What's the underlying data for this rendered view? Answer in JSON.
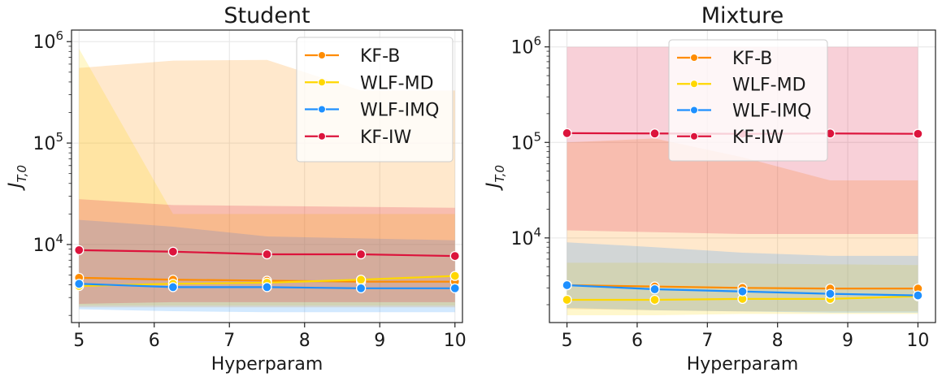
{
  "chart_data": [
    {
      "type": "line",
      "title": "Student",
      "xlabel": "Hyperparam",
      "ylabel": "J_{T,0}",
      "yscale": "log",
      "xlim": [
        4.9,
        10.1
      ],
      "ylim": [
        1700,
        1300000
      ],
      "x_ticks": [
        "5",
        "6",
        "7",
        "8",
        "9",
        "10"
      ],
      "y_ticks": [
        {
          "value": 10000,
          "base": "10",
          "exp": "4"
        },
        {
          "value": 100000,
          "base": "10",
          "exp": "5"
        },
        {
          "value": 1000000,
          "base": "10",
          "exp": "6"
        }
      ],
      "grid": true,
      "legend_position": "top-right",
      "x": [
        5,
        6.25,
        7.5,
        8.75,
        10
      ],
      "series": [
        {
          "name": "KF-B",
          "color": "#ff8c00",
          "values": [
            4700,
            4500,
            4400,
            4300,
            4300
          ],
          "band_low": [
            2400,
            2400,
            2400,
            2400,
            2400
          ],
          "band_high": [
            550000,
            650000,
            660000,
            330000,
            330000
          ]
        },
        {
          "name": "WLF-MD",
          "color": "#ffd700",
          "values": [
            3900,
            4100,
            4200,
            4500,
            4900
          ],
          "band_low": [
            2500,
            2500,
            2500,
            2500,
            2500
          ],
          "band_high": [
            850000,
            20000,
            20000,
            20000,
            20000
          ]
        },
        {
          "name": "WLF-IMQ",
          "color": "#1e90ff",
          "values": [
            4100,
            3800,
            3800,
            3700,
            3700
          ],
          "band_low": [
            2300,
            2200,
            2150,
            2150,
            2150
          ],
          "band_high": [
            17500,
            15000,
            12000,
            11500,
            11000
          ]
        },
        {
          "name": "KF-IW",
          "color": "#dc143c",
          "values": [
            8800,
            8500,
            8000,
            8000,
            7700
          ],
          "band_low": [
            2600,
            2700,
            2700,
            2700,
            2700
          ],
          "band_high": [
            28000,
            24500,
            24000,
            23500,
            23000
          ]
        }
      ]
    },
    {
      "type": "line",
      "title": "Mixture",
      "xlabel": "Hyperparam",
      "ylabel": "J_{T,0}",
      "yscale": "log",
      "xlim": [
        4.75,
        10.25
      ],
      "ylim": [
        1300,
        1500000
      ],
      "x_ticks": [
        "5",
        "6",
        "7",
        "8",
        "9",
        "10"
      ],
      "y_ticks": [
        {
          "value": 10000,
          "base": "10",
          "exp": "4"
        },
        {
          "value": 100000,
          "base": "10",
          "exp": "5"
        },
        {
          "value": 1000000,
          "base": "10",
          "exp": "6"
        }
      ],
      "grid": true,
      "legend_position": "top-center",
      "x": [
        5,
        6.25,
        7.5,
        8.75,
        10
      ],
      "series": [
        {
          "name": "KF-B",
          "color": "#ff8c00",
          "values": [
            3200,
            3100,
            3000,
            2950,
            2950
          ],
          "band_low": [
            1800,
            1750,
            1700,
            1700,
            1700
          ],
          "band_high": [
            100000,
            110000,
            70000,
            40000,
            40000
          ]
        },
        {
          "name": "WLF-MD",
          "color": "#ffd700",
          "values": [
            2250,
            2250,
            2300,
            2300,
            2450
          ],
          "band_low": [
            1550,
            1550,
            1600,
            1600,
            1600
          ],
          "band_high": [
            5500,
            5500,
            5400,
            5300,
            5200
          ]
        },
        {
          "name": "WLF-IMQ",
          "color": "#1e90ff",
          "values": [
            3200,
            2900,
            2750,
            2600,
            2500
          ],
          "band_low": [
            1850,
            1750,
            1700,
            1650,
            1650
          ],
          "band_high": [
            9000,
            8000,
            7000,
            6500,
            6500
          ]
        },
        {
          "name": "KF-IW",
          "color": "#dc143c",
          "values": [
            125000,
            124000,
            123000,
            124000,
            123000
          ],
          "band_low": [
            12000,
            11500,
            11000,
            11000,
            11000
          ],
          "band_high": [
            1000000,
            1000000,
            1000000,
            1000000,
            1000000
          ]
        }
      ]
    }
  ]
}
